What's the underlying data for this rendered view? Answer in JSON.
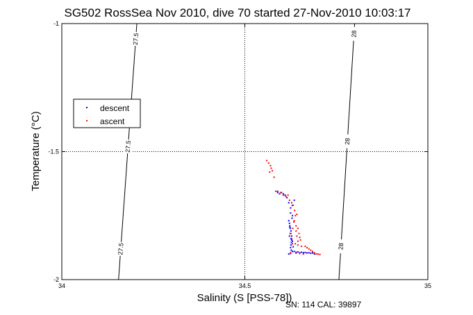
{
  "chart_data": {
    "type": "scatter",
    "title": "SG502 RossSea Nov 2010, dive 70 started 27-Nov-2010 10:03:17",
    "xlabel": "Salinity (S [PSS-78])",
    "ylabel": "Temperature (°C)",
    "xlim": [
      34,
      35
    ],
    "ylim": [
      -2,
      -1
    ],
    "x_ticks": [
      "34",
      "34.5",
      "35"
    ],
    "y_ticks": [
      "-1",
      "-1.5",
      "-2"
    ],
    "grid": true,
    "legend_placement": "left",
    "series": [
      {
        "name": "descent",
        "color": "#0000ff",
        "points": [
          [
            34.585,
            -1.655
          ],
          [
            34.59,
            -1.66
          ],
          [
            34.595,
            -1.665
          ],
          [
            34.6,
            -1.66
          ],
          [
            34.605,
            -1.665
          ],
          [
            34.61,
            -1.67
          ],
          [
            34.615,
            -1.68
          ],
          [
            34.62,
            -1.7
          ],
          [
            34.625,
            -1.72
          ],
          [
            34.625,
            -1.74
          ],
          [
            34.63,
            -1.71
          ],
          [
            34.63,
            -1.75
          ],
          [
            34.635,
            -1.69
          ],
          [
            34.62,
            -1.77
          ],
          [
            34.622,
            -1.78
          ],
          [
            34.623,
            -1.79
          ],
          [
            34.624,
            -1.8
          ],
          [
            34.626,
            -1.81
          ],
          [
            34.624,
            -1.82
          ],
          [
            34.622,
            -1.83
          ],
          [
            34.626,
            -1.84
          ],
          [
            34.628,
            -1.845
          ],
          [
            34.627,
            -1.855
          ],
          [
            34.626,
            -1.865
          ],
          [
            34.625,
            -1.875
          ],
          [
            34.627,
            -1.885
          ],
          [
            34.63,
            -1.89
          ],
          [
            34.635,
            -1.89
          ],
          [
            34.64,
            -1.893
          ],
          [
            34.645,
            -1.892
          ],
          [
            34.65,
            -1.895
          ],
          [
            34.655,
            -1.893
          ],
          [
            34.66,
            -1.895
          ],
          [
            34.665,
            -1.894
          ],
          [
            34.67,
            -1.896
          ],
          [
            34.675,
            -1.895
          ],
          [
            34.68,
            -1.897
          ],
          [
            34.685,
            -1.896
          ],
          [
            34.69,
            -1.9
          ],
          [
            34.62,
            -1.9
          ],
          [
            34.625,
            -1.898
          ],
          [
            34.632,
            -1.872
          ],
          [
            34.63,
            -1.85
          ],
          [
            34.628,
            -1.83
          ],
          [
            34.623,
            -1.795
          ],
          [
            34.629,
            -1.76
          ]
        ]
      },
      {
        "name": "ascent",
        "color": "#ff0000",
        "points": [
          [
            34.56,
            -1.535
          ],
          [
            34.565,
            -1.545
          ],
          [
            34.57,
            -1.555
          ],
          [
            34.572,
            -1.565
          ],
          [
            34.575,
            -1.575
          ],
          [
            34.568,
            -1.58
          ],
          [
            34.58,
            -1.6
          ],
          [
            34.59,
            -1.655
          ],
          [
            34.598,
            -1.66
          ],
          [
            34.605,
            -1.67
          ],
          [
            34.612,
            -1.675
          ],
          [
            34.618,
            -1.67
          ],
          [
            34.622,
            -1.69
          ],
          [
            34.628,
            -1.7
          ],
          [
            34.632,
            -1.71
          ],
          [
            34.636,
            -1.73
          ],
          [
            34.638,
            -1.75
          ],
          [
            34.635,
            -1.77
          ],
          [
            34.64,
            -1.79
          ],
          [
            34.645,
            -1.8
          ],
          [
            34.64,
            -1.81
          ],
          [
            34.648,
            -1.82
          ],
          [
            34.642,
            -1.83
          ],
          [
            34.65,
            -1.835
          ],
          [
            34.652,
            -1.845
          ],
          [
            34.645,
            -1.85
          ],
          [
            34.638,
            -1.86
          ],
          [
            34.645,
            -1.865
          ],
          [
            34.655,
            -1.87
          ],
          [
            34.665,
            -1.87
          ],
          [
            34.67,
            -1.875
          ],
          [
            34.675,
            -1.88
          ],
          [
            34.68,
            -1.885
          ],
          [
            34.685,
            -1.89
          ],
          [
            34.69,
            -1.895
          ],
          [
            34.695,
            -1.9
          ],
          [
            34.7,
            -1.9
          ],
          [
            34.705,
            -1.902
          ],
          [
            34.66,
            -1.9
          ],
          [
            34.65,
            -1.898
          ],
          [
            34.64,
            -1.897
          ],
          [
            34.625,
            -1.895
          ],
          [
            34.63,
            -1.86
          ],
          [
            34.628,
            -1.84
          ],
          [
            34.626,
            -1.82
          ],
          [
            34.631,
            -1.8
          ],
          [
            34.634,
            -1.775
          ],
          [
            34.642,
            -1.745
          ]
        ]
      }
    ],
    "contours": [
      {
        "label": "27.5",
        "start": [
          34.205,
          -1.0
        ],
        "end": [
          34.155,
          -2.0
        ],
        "label_y": [
          -1.06,
          -1.48,
          -1.88
        ]
      },
      {
        "label": "28",
        "start": [
          34.8,
          -1.0
        ],
        "end": [
          34.757,
          -2.0
        ],
        "label_y": [
          -1.04,
          -1.46,
          -1.87
        ]
      }
    ],
    "footer": "SN: 114  CAL: 39897"
  }
}
